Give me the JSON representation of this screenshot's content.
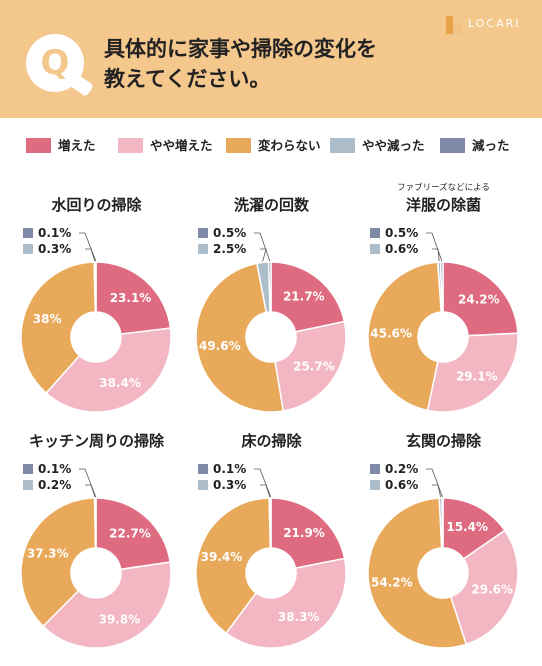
{
  "header": {
    "q_letter": "Q",
    "title_line1": "具体的に家事や掃除の変化を",
    "title_line2": "教えてください。",
    "logo_text": "LOCARI"
  },
  "colors": {
    "header_bg": "#f4c78c",
    "increased": "#de6b7f",
    "slightly_increased": "#f3b7c3",
    "unchanged": "#e9a95a",
    "slightly_decreased": "#aebdca",
    "decreased": "#7f8aa6"
  },
  "legend": [
    {
      "label": "増えた",
      "color": "#de6b7f"
    },
    {
      "label": "やや増えた",
      "color": "#f3b7c3"
    },
    {
      "label": "変わらない",
      "color": "#e9a95a"
    },
    {
      "label": "やや減った",
      "color": "#aebdca"
    },
    {
      "label": "減った",
      "color": "#7f8aa6"
    }
  ],
  "chart_data": [
    {
      "type": "pie",
      "title": "水回りの掃除",
      "subtitle": "",
      "categories": [
        "増えた",
        "やや増えた",
        "変わらない",
        "やや減った",
        "減った"
      ],
      "values": [
        23.1,
        38.4,
        38,
        0.3,
        0.1
      ],
      "labels": [
        "23.1%",
        "38.4%",
        "38%",
        "0.3%",
        "0.1%"
      ]
    },
    {
      "type": "pie",
      "title": "洗濯の回数",
      "subtitle": "",
      "categories": [
        "増えた",
        "やや増えた",
        "変わらない",
        "やや減った",
        "減った"
      ],
      "values": [
        21.7,
        25.7,
        49.6,
        2.5,
        0.5
      ],
      "labels": [
        "21.7%",
        "25.7%",
        "49.6%",
        "2.5%",
        "0.5%"
      ]
    },
    {
      "type": "pie",
      "title": "洋服の除菌",
      "subtitle": "ファブリーズなどによる",
      "categories": [
        "増えた",
        "やや増えた",
        "変わらない",
        "やや減った",
        "減った"
      ],
      "values": [
        24.2,
        29.1,
        45.6,
        0.6,
        0.5
      ],
      "labels": [
        "24.2%",
        "29.1%",
        "45.6%",
        "0.6%",
        "0.5%"
      ]
    },
    {
      "type": "pie",
      "title": "キッチン周りの掃除",
      "subtitle": "",
      "categories": [
        "増えた",
        "やや増えた",
        "変わらない",
        "やや減った",
        "減った"
      ],
      "values": [
        22.7,
        39.8,
        37.3,
        0.2,
        0.1
      ],
      "labels": [
        "22.7%",
        "39.8%",
        "37.3%",
        "0.2%",
        "0.1%"
      ]
    },
    {
      "type": "pie",
      "title": "床の掃除",
      "subtitle": "",
      "categories": [
        "増えた",
        "やや増えた",
        "変わらない",
        "やや減った",
        "減った"
      ],
      "values": [
        21.9,
        38.3,
        39.4,
        0.3,
        0.1
      ],
      "labels": [
        "21.9%",
        "38.3%",
        "39.4%",
        "0.3%",
        "0.1%"
      ]
    },
    {
      "type": "pie",
      "title": "玄関の掃除",
      "subtitle": "",
      "categories": [
        "増えた",
        "やや増えた",
        "変わらない",
        "やや減った",
        "減った"
      ],
      "values": [
        15.4,
        29.6,
        54.2,
        0.6,
        0.2
      ],
      "labels": [
        "15.4%",
        "29.6%",
        "54.2%",
        "0.6%",
        "0.2%"
      ]
    }
  ]
}
